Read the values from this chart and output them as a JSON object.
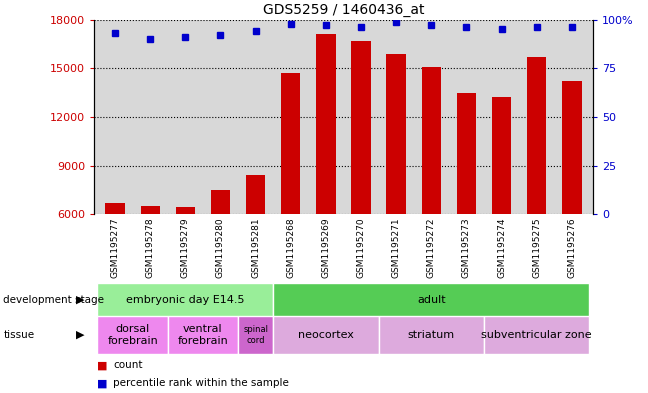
{
  "title": "GDS5259 / 1460436_at",
  "samples": [
    "GSM1195277",
    "GSM1195278",
    "GSM1195279",
    "GSM1195280",
    "GSM1195281",
    "GSM1195268",
    "GSM1195269",
    "GSM1195270",
    "GSM1195271",
    "GSM1195272",
    "GSM1195273",
    "GSM1195274",
    "GSM1195275",
    "GSM1195276"
  ],
  "counts": [
    6700,
    6500,
    6450,
    7500,
    8400,
    14700,
    17100,
    16700,
    15900,
    15100,
    13500,
    13200,
    15700,
    14200
  ],
  "percentiles": [
    93,
    90,
    91,
    92,
    94,
    98,
    97,
    96,
    99,
    97,
    96,
    95,
    96,
    96
  ],
  "ylim_left": [
    6000,
    18000
  ],
  "ylim_right": [
    0,
    100
  ],
  "yticks_left": [
    6000,
    9000,
    12000,
    15000,
    18000
  ],
  "yticks_right": [
    0,
    25,
    50,
    75,
    100
  ],
  "bar_color": "#cc0000",
  "dot_color": "#0000cc",
  "bg_color": "#d8d8d8",
  "fig_bg": "#ffffff",
  "development_stages": [
    {
      "label": "embryonic day E14.5",
      "start": 0,
      "end": 5,
      "color": "#99ee99"
    },
    {
      "label": "adult",
      "start": 5,
      "end": 14,
      "color": "#55cc55"
    }
  ],
  "tissues": [
    {
      "label": "dorsal\nforebrain",
      "start": 0,
      "end": 2,
      "color": "#ee88ee"
    },
    {
      "label": "ventral\nforebrain",
      "start": 2,
      "end": 4,
      "color": "#ee88ee"
    },
    {
      "label": "spinal\ncord",
      "start": 4,
      "end": 5,
      "color": "#cc66cc"
    },
    {
      "label": "neocortex",
      "start": 5,
      "end": 8,
      "color": "#ddaadd"
    },
    {
      "label": "striatum",
      "start": 8,
      "end": 11,
      "color": "#ddaadd"
    },
    {
      "label": "subventricular zone",
      "start": 11,
      "end": 14,
      "color": "#ddaadd"
    }
  ],
  "label_left_dev": "development stage",
  "label_left_tissue": "tissue",
  "legend_count": "count",
  "legend_pct": "percentile rank within the sample"
}
